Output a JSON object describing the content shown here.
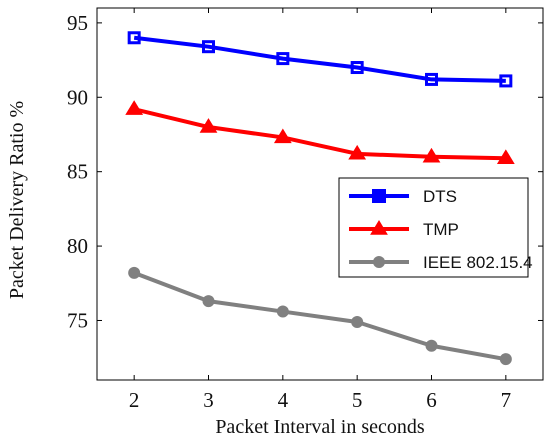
{
  "chart_data": {
    "type": "line",
    "title": "",
    "xlabel": "Packet Interval in seconds",
    "ylabel": "Packet Delivery Ratio %",
    "x": [
      2,
      3,
      4,
      5,
      6,
      7
    ],
    "xlim": [
      1.5,
      7.5
    ],
    "ylim": [
      71,
      96
    ],
    "x_ticks": [
      "2",
      "3",
      "4",
      "5",
      "6",
      "7"
    ],
    "y_ticks": [
      "75",
      "80",
      "85",
      "90",
      "95"
    ],
    "grid": false,
    "legend_position": "right",
    "series": [
      {
        "name": "DTS",
        "values": [
          94.0,
          93.4,
          92.6,
          92.0,
          91.2,
          91.1
        ],
        "color": "#0000ff",
        "marker": "square"
      },
      {
        "name": "TMP",
        "values": [
          89.2,
          88.0,
          87.3,
          86.2,
          86.0,
          85.9
        ],
        "color": "#ff0000",
        "marker": "triangle"
      },
      {
        "name": "IEEE 802.15.4",
        "values": [
          78.2,
          76.3,
          75.6,
          74.9,
          73.3,
          72.4
        ],
        "color": "#808080",
        "marker": "circle"
      }
    ]
  }
}
